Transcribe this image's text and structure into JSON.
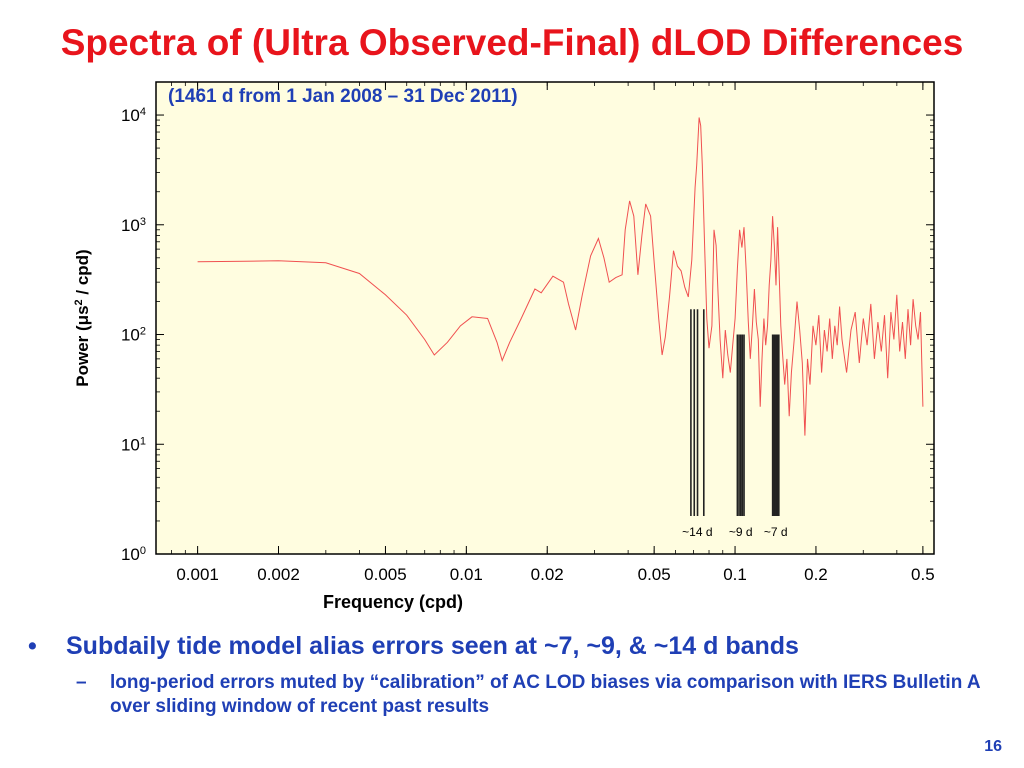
{
  "slide": {
    "title": "Spectra of (Ultra Observed-Final) dLOD Differences",
    "subtitle": "(1461 d from 1 Jan 2008 – 31 Dec 2011)",
    "bullet_main": "Subdaily tide model alias errors seen at ~7, ~9, & ~14 d bands",
    "bullet_sub": "long-period errors muted by “calibration” of AC LOD biases via comparison with IERS Bulletin A over sliding window of recent past results",
    "bullet_marker": "•",
    "sub_marker": "–",
    "page_number": "16"
  },
  "chart_data": {
    "type": "line",
    "xlabel": "Frequency (cpd)",
    "ylabel_parts": [
      "Power (",
      "μs",
      "2",
      " / cpd)"
    ],
    "x_scale": "log",
    "y_scale": "log",
    "xlim": [
      0.0007,
      0.55
    ],
    "ylim": [
      1,
      20000
    ],
    "x_ticks": [
      {
        "v": 0.001,
        "label": "0.001"
      },
      {
        "v": 0.002,
        "label": "0.002"
      },
      {
        "v": 0.005,
        "label": "0.005"
      },
      {
        "v": 0.01,
        "label": "0.01"
      },
      {
        "v": 0.02,
        "label": "0.02"
      },
      {
        "v": 0.05,
        "label": "0.05"
      },
      {
        "v": 0.1,
        "label": "0.1"
      },
      {
        "v": 0.2,
        "label": "0.2"
      },
      {
        "v": 0.5,
        "label": "0.5"
      }
    ],
    "y_ticks": [
      {
        "v": 1,
        "base": "10",
        "exp": "0"
      },
      {
        "v": 10,
        "base": "10",
        "exp": "1"
      },
      {
        "v": 100,
        "base": "10",
        "exp": "2"
      },
      {
        "v": 1000,
        "base": "10",
        "exp": "3"
      },
      {
        "v": 10000,
        "base": "10",
        "exp": "4"
      }
    ],
    "background": "#fffde0",
    "line_color": "#f05050",
    "series": [
      {
        "values": [
          [
            0.001,
            460
          ],
          [
            0.0015,
            465
          ],
          [
            0.002,
            470
          ],
          [
            0.003,
            450
          ],
          [
            0.004,
            360
          ],
          [
            0.005,
            230
          ],
          [
            0.006,
            150
          ],
          [
            0.007,
            90
          ],
          [
            0.0076,
            65
          ],
          [
            0.0085,
            85
          ],
          [
            0.0095,
            120
          ],
          [
            0.0105,
            145
          ],
          [
            0.012,
            140
          ],
          [
            0.013,
            85
          ],
          [
            0.0136,
            58
          ],
          [
            0.0145,
            85
          ],
          [
            0.016,
            140
          ],
          [
            0.018,
            260
          ],
          [
            0.019,
            240
          ],
          [
            0.021,
            340
          ],
          [
            0.023,
            300
          ],
          [
            0.024,
            190
          ],
          [
            0.0255,
            110
          ],
          [
            0.027,
            230
          ],
          [
            0.029,
            520
          ],
          [
            0.031,
            750
          ],
          [
            0.0325,
            500
          ],
          [
            0.034,
            300
          ],
          [
            0.036,
            330
          ],
          [
            0.038,
            350
          ],
          [
            0.039,
            900
          ],
          [
            0.0405,
            1650
          ],
          [
            0.042,
            1200
          ],
          [
            0.0435,
            350
          ],
          [
            0.045,
            800
          ],
          [
            0.0465,
            1550
          ],
          [
            0.0485,
            1200
          ],
          [
            0.05,
            450
          ],
          [
            0.052,
            140
          ],
          [
            0.0535,
            65
          ],
          [
            0.055,
            95
          ],
          [
            0.057,
            220
          ],
          [
            0.059,
            580
          ],
          [
            0.061,
            420
          ],
          [
            0.063,
            380
          ],
          [
            0.065,
            270
          ],
          [
            0.067,
            220
          ],
          [
            0.069,
            480
          ],
          [
            0.071,
            2200
          ],
          [
            0.072,
            3500
          ],
          [
            0.0735,
            9500
          ],
          [
            0.0745,
            8000
          ],
          [
            0.0755,
            3500
          ],
          [
            0.077,
            650
          ],
          [
            0.0785,
            140
          ],
          [
            0.08,
            75
          ],
          [
            0.082,
            120
          ],
          [
            0.0835,
            900
          ],
          [
            0.085,
            650
          ],
          [
            0.0865,
            230
          ],
          [
            0.088,
            90
          ],
          [
            0.09,
            40
          ],
          [
            0.092,
            110
          ],
          [
            0.094,
            65
          ],
          [
            0.096,
            45
          ],
          [
            0.098,
            80
          ],
          [
            0.1,
            140
          ],
          [
            0.102,
            400
          ],
          [
            0.104,
            900
          ],
          [
            0.106,
            620
          ],
          [
            0.108,
            950
          ],
          [
            0.11,
            380
          ],
          [
            0.112,
            130
          ],
          [
            0.114,
            60
          ],
          [
            0.116,
            120
          ],
          [
            0.118,
            260
          ],
          [
            0.12,
            130
          ],
          [
            0.122,
            90
          ],
          [
            0.124,
            22
          ],
          [
            0.126,
            60
          ],
          [
            0.128,
            140
          ],
          [
            0.13,
            80
          ],
          [
            0.132,
            120
          ],
          [
            0.134,
            280
          ],
          [
            0.136,
            480
          ],
          [
            0.138,
            1200
          ],
          [
            0.14,
            650
          ],
          [
            0.142,
            280
          ],
          [
            0.144,
            950
          ],
          [
            0.146,
            350
          ],
          [
            0.148,
            120
          ],
          [
            0.15,
            70
          ],
          [
            0.153,
            35
          ],
          [
            0.156,
            60
          ],
          [
            0.159,
            18
          ],
          [
            0.162,
            45
          ],
          [
            0.166,
            90
          ],
          [
            0.17,
            200
          ],
          [
            0.174,
            110
          ],
          [
            0.178,
            55
          ],
          [
            0.182,
            12
          ],
          [
            0.186,
            60
          ],
          [
            0.19,
            35
          ],
          [
            0.195,
            120
          ],
          [
            0.2,
            80
          ],
          [
            0.205,
            150
          ],
          [
            0.21,
            45
          ],
          [
            0.215,
            110
          ],
          [
            0.22,
            70
          ],
          [
            0.225,
            140
          ],
          [
            0.23,
            60
          ],
          [
            0.235,
            120
          ],
          [
            0.24,
            80
          ],
          [
            0.245,
            180
          ],
          [
            0.25,
            90
          ],
          [
            0.26,
            45
          ],
          [
            0.27,
            110
          ],
          [
            0.28,
            160
          ],
          [
            0.29,
            55
          ],
          [
            0.3,
            140
          ],
          [
            0.31,
            80
          ],
          [
            0.32,
            190
          ],
          [
            0.33,
            60
          ],
          [
            0.34,
            130
          ],
          [
            0.35,
            70
          ],
          [
            0.36,
            150
          ],
          [
            0.37,
            40
          ],
          [
            0.38,
            160
          ],
          [
            0.39,
            90
          ],
          [
            0.4,
            230
          ],
          [
            0.41,
            70
          ],
          [
            0.42,
            130
          ],
          [
            0.43,
            60
          ],
          [
            0.44,
            170
          ],
          [
            0.45,
            80
          ],
          [
            0.46,
            210
          ],
          [
            0.47,
            120
          ],
          [
            0.48,
            90
          ],
          [
            0.49,
            160
          ],
          [
            0.5,
            22
          ]
        ]
      }
    ],
    "alias_bands": [
      {
        "label": "~14 d",
        "freqs": [
          0.0685,
          0.0705,
          0.0725,
          0.0765
        ],
        "power": 170
      },
      {
        "label": "~9 d",
        "freqs": [
          0.102,
          0.1035,
          0.105,
          0.1065,
          0.108
        ],
        "power": 100
      },
      {
        "label": "~7 d",
        "freqs": [
          0.138,
          0.1395,
          0.141,
          0.1425,
          0.144,
          0.1455
        ],
        "power": 100
      }
    ]
  }
}
